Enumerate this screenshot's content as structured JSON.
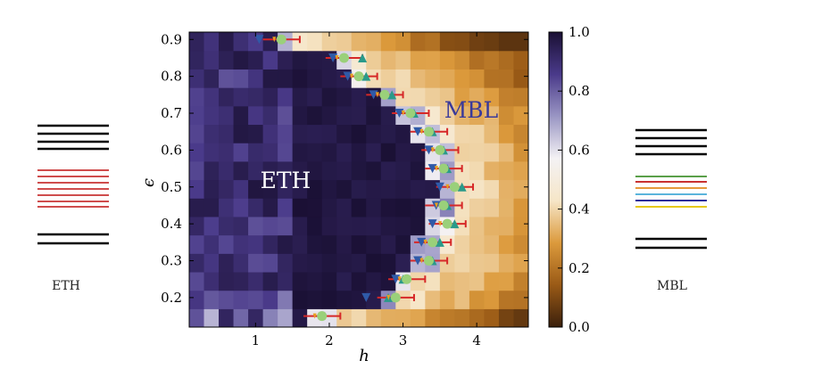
{
  "chart_data": {
    "type": "heatmap",
    "xlabel": "h",
    "ylabel": "ϵ",
    "xlim": [
      0.1,
      4.7
    ],
    "ylim": [
      0.12,
      0.92
    ],
    "x_ticks": [
      "1",
      "2",
      "3",
      "4"
    ],
    "y_ticks": [
      "0.2",
      "0.3",
      "0.4",
      "0.5",
      "0.6",
      "0.7",
      "0.8",
      "0.9"
    ],
    "colorbar": {
      "range": [
        0.0,
        1.0
      ],
      "ticks": [
        "0.0",
        "0.2",
        "0.4",
        "0.6",
        "0.8",
        "1.0"
      ],
      "colors": [
        "#3b200c",
        "#9a5a16",
        "#dc9a3c",
        "#f6e6c8",
        "#f4f2f4",
        "#9a96c4",
        "#4a3a8a",
        "#1a1034"
      ]
    },
    "annotations": {
      "eth": "ETH",
      "mbl": "MBL"
    },
    "phase_boundary": {
      "eps": [
        0.15,
        0.2,
        0.25,
        0.3,
        0.35,
        0.4,
        0.45,
        0.5,
        0.55,
        0.6,
        0.65,
        0.7,
        0.75,
        0.8,
        0.85,
        0.9
      ],
      "h_center": [
        1.85,
        2.9,
        3.05,
        3.3,
        3.35,
        3.5,
        3.55,
        3.62,
        3.5,
        3.45,
        3.3,
        3.1,
        2.75,
        2.4,
        2.2,
        1.3
      ]
    },
    "markers": {
      "circle_h": [
        1.9,
        2.9,
        3.05,
        3.35,
        3.4,
        3.6,
        3.55,
        3.7,
        3.55,
        3.5,
        3.35,
        3.1,
        2.75,
        2.4,
        2.2,
        1.35
      ],
      "triangle_down_h": [
        null,
        2.5,
        2.9,
        3.2,
        3.25,
        3.4,
        3.45,
        3.5,
        3.4,
        3.35,
        3.2,
        2.95,
        2.6,
        2.25,
        2.05,
        1.05
      ],
      "triangle_up_h": [
        null,
        2.8,
        3.0,
        3.4,
        3.5,
        3.7,
        3.6,
        3.8,
        3.6,
        3.55,
        3.4,
        3.15,
        2.85,
        2.5,
        2.45,
        null
      ]
    }
  },
  "side_panels": {
    "left_label": "ETH",
    "right_label": "MBL",
    "eth_line_colors": [
      "#000000",
      "#000000",
      "#000000",
      "#000000",
      "#c83232",
      "#c83232",
      "#c83232",
      "#c83232",
      "#c83232",
      "#c83232",
      "#c83232",
      "#000000",
      "#000000"
    ],
    "mbl_line_colors": [
      "#000000",
      "#000000",
      "#000000",
      "#000000",
      "#5aa04a",
      "#c83232",
      "#e69a3c",
      "#5ab4dc",
      "#2a2a9a",
      "#e6c814",
      "#000000",
      "#000000"
    ]
  }
}
